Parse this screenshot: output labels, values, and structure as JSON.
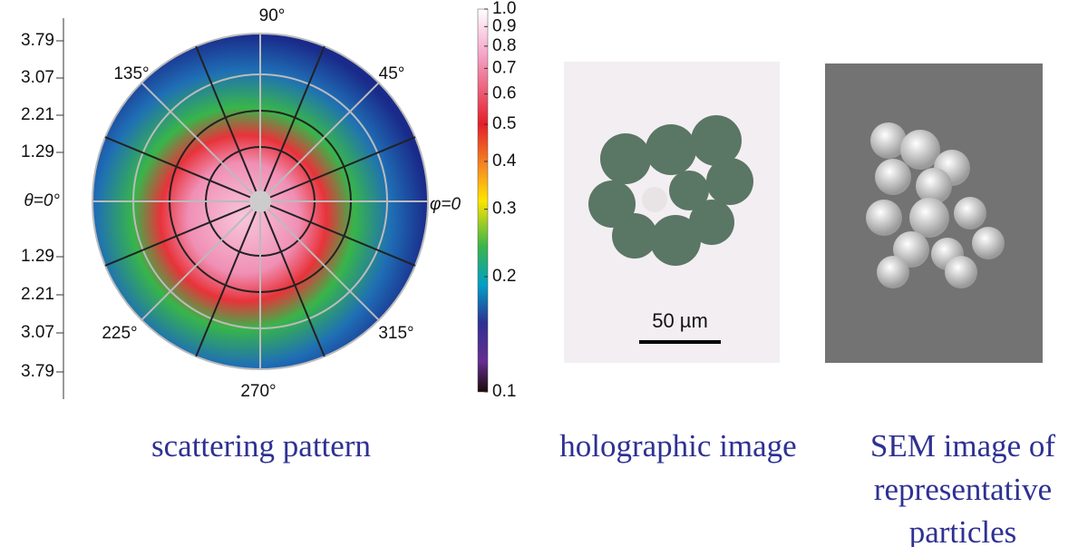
{
  "polar": {
    "radial_labels_upper": [
      "3.79",
      "3.07",
      "2.21",
      "1.29"
    ],
    "center_label": "θ=0°",
    "radial_labels_lower": [
      "1.29",
      "2.21",
      "3.07",
      "3.79"
    ],
    "angle_90": "90°",
    "angle_45": "45°",
    "angle_135": "135°",
    "angle_225": "225°",
    "angle_315": "315°",
    "angle_270": "270°",
    "phi_label": "φ=0"
  },
  "colorbar": {
    "scale": "log",
    "lim": [
      0.1,
      1
    ],
    "ticks": [
      {
        "value": 1,
        "label": "1.0"
      },
      0.9,
      0.8,
      0.7,
      0.6,
      0.5,
      0.4,
      0.3,
      0.2,
      0.1
    ]
  },
  "holographic": {
    "scale_bar": "50 µm"
  },
  "captions": {
    "scattering": "scattering pattern",
    "holographic": "holographic image",
    "sem": [
      "SEM image of",
      "representative",
      "particles"
    ]
  }
}
